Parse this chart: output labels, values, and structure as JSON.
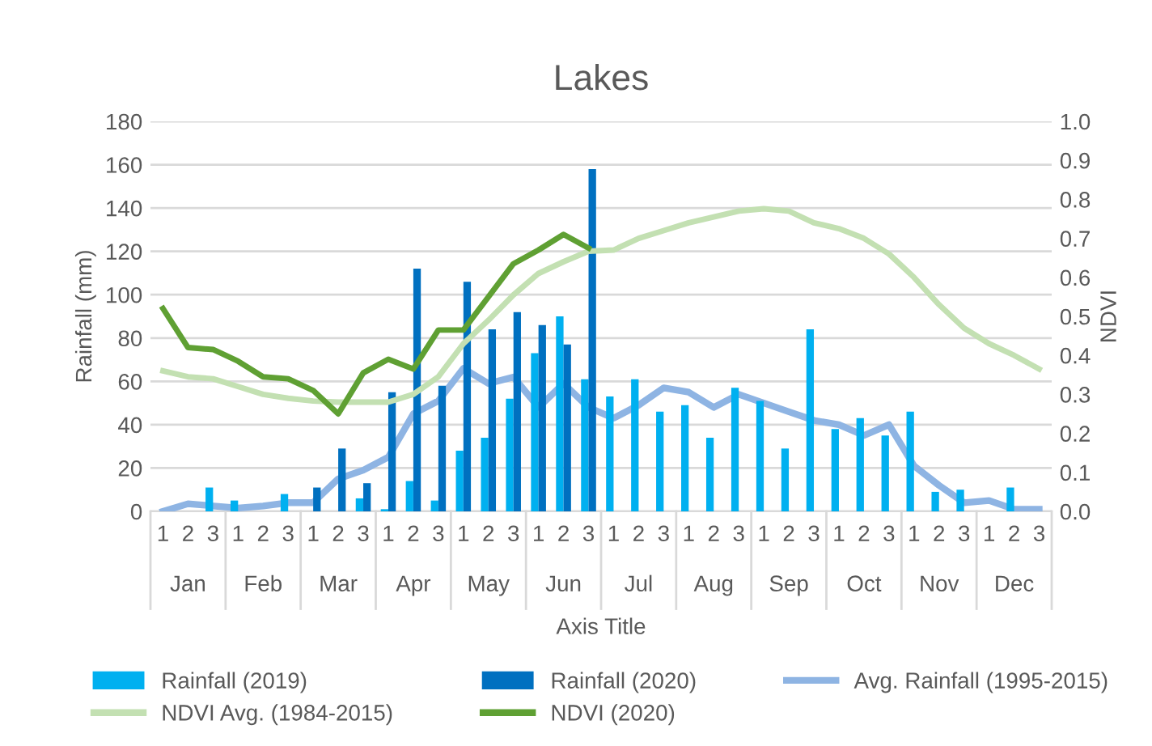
{
  "chart_data": {
    "type": "bar",
    "title": "Lakes",
    "xlabel": "Axis Title",
    "ylabel": "Rainfall (mm)",
    "y2label": "NDVI",
    "categories": [
      "1",
      "2",
      "3",
      "1",
      "2",
      "3",
      "1",
      "2",
      "3",
      "1",
      "2",
      "3",
      "1",
      "2",
      "3",
      "1",
      "2",
      "3",
      "1",
      "2",
      "3",
      "1",
      "2",
      "3",
      "1",
      "2",
      "3",
      "1",
      "2",
      "3",
      "1",
      "2",
      "3",
      "1",
      "2",
      "3"
    ],
    "annotations": [
      "Jan",
      "Feb",
      "Mar",
      "Apr",
      "May",
      "Jun",
      "Jul",
      "Aug",
      "Sep",
      "Oct",
      "Nov",
      "Dec"
    ],
    "series": [
      {
        "name": "Rainfall (2019)",
        "color": "#00b0f0",
        "values": [
          0,
          0,
          11,
          5,
          0,
          8,
          0,
          0,
          6,
          1,
          14,
          5,
          28,
          34,
          52,
          73,
          90,
          61,
          53,
          61,
          46,
          49,
          34,
          57,
          51,
          29,
          84,
          38,
          43,
          35,
          46,
          9,
          10,
          null,
          11,
          0
        ]
      },
      {
        "name": "Rainfall (2020)",
        "color": "#0070c0",
        "values": [
          0,
          0,
          0,
          0,
          0,
          0,
          11,
          29,
          13,
          55,
          112,
          58,
          106,
          84,
          92,
          86,
          77,
          158,
          null,
          null,
          null,
          null,
          null,
          null,
          null,
          null,
          null,
          null,
          null,
          null,
          null,
          null,
          null,
          null,
          null,
          null
        ]
      },
      {
        "name": "Avg. Rainfall (1995-2015)",
        "type": "line",
        "color": "#8eb4e3",
        "values": [
          0,
          3.5,
          2.5,
          1.5,
          2.5,
          4,
          4,
          15,
          19,
          25,
          45,
          51,
          66,
          59,
          62,
          48,
          59,
          48,
          43,
          49,
          57,
          55,
          48,
          54,
          50,
          46,
          42,
          40,
          35,
          40,
          21,
          12,
          4,
          5,
          1,
          1
        ]
      },
      {
        "name": "NDVI Avg. (1984-2015)",
        "type": "line",
        "axis": "y2",
        "color": "#c3e0b2",
        "values": [
          0.36,
          0.345,
          0.34,
          0.32,
          0.3,
          0.29,
          0.283,
          0.28,
          0.28,
          0.28,
          0.3,
          0.345,
          0.43,
          0.49,
          0.555,
          0.61,
          0.64,
          0.667,
          0.67,
          0.7,
          0.72,
          0.74,
          0.755,
          0.77,
          0.776,
          0.77,
          0.74,
          0.725,
          0.7,
          0.66,
          0.6,
          0.53,
          0.47,
          0.43,
          0.4,
          0.365
        ]
      },
      {
        "name": "NDVI (2020)",
        "type": "line",
        "axis": "y2",
        "color": "#5fa033",
        "values": [
          0.52,
          0.42,
          0.415,
          0.385,
          0.345,
          0.34,
          0.31,
          0.25,
          0.355,
          0.39,
          0.365,
          0.465,
          0.465,
          0.55,
          0.635,
          0.67,
          0.71,
          0.675,
          null,
          null,
          null,
          null,
          null,
          null,
          null,
          null,
          null,
          null,
          null,
          null,
          null,
          null,
          null,
          null,
          null,
          null
        ]
      }
    ],
    "ylim": [
      0,
      180
    ],
    "yticks": [
      0,
      20,
      40,
      60,
      80,
      100,
      120,
      140,
      160,
      180
    ],
    "y2lim": [
      0,
      1
    ],
    "y2ticks": [
      {
        "value": 0,
        "label": "0.0"
      },
      {
        "value": 0.1,
        "label": "0.1"
      },
      {
        "value": 0.2,
        "label": "0.2"
      },
      {
        "value": 0.3,
        "label": "0.3"
      },
      {
        "value": 0.4,
        "label": "0.4"
      },
      {
        "value": 0.5,
        "label": "0.5"
      },
      {
        "value": 0.6,
        "label": "0.6"
      },
      {
        "value": 0.7,
        "label": "0.7"
      },
      {
        "value": 0.8,
        "label": "0.8"
      },
      {
        "value": 0.9,
        "label": "0.9"
      },
      {
        "value": 1,
        "label": "1.0"
      }
    ],
    "grid": "y",
    "legend": "bottom",
    "marker": "none",
    "line_style": "solid"
  }
}
